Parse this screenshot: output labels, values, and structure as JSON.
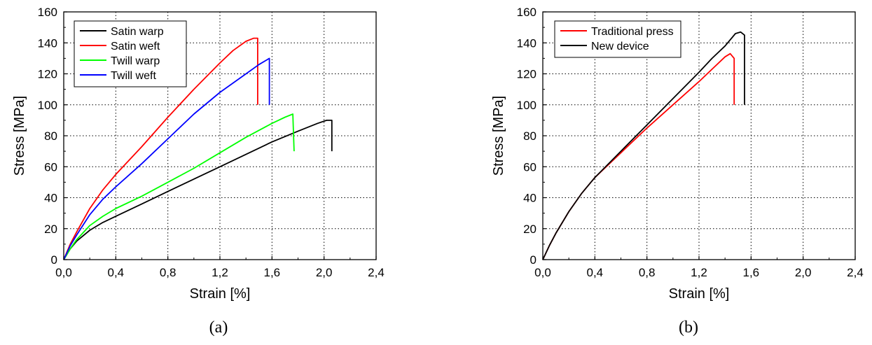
{
  "chart_data": [
    {
      "type": "line",
      "panel_label": "(a)",
      "xlabel": "Strain [%]",
      "ylabel": "Stress [MPa]",
      "xlim": [
        0,
        2.4
      ],
      "ylim": [
        0,
        160
      ],
      "xticks": [
        "0,0",
        "0,4",
        "0,8",
        "1,2",
        "1,6",
        "2,0",
        "2,4"
      ],
      "yticks": [
        "0",
        "20",
        "40",
        "60",
        "80",
        "100",
        "120",
        "140",
        "160"
      ],
      "grid": true,
      "legend_position": "top-left",
      "series": [
        {
          "name": "Satin warp",
          "color": "#000000",
          "points": [
            [
              0,
              0
            ],
            [
              0.05,
              7
            ],
            [
              0.1,
              12
            ],
            [
              0.2,
              19
            ],
            [
              0.3,
              24
            ],
            [
              0.4,
              28
            ],
            [
              0.6,
              36
            ],
            [
              0.8,
              44
            ],
            [
              1.0,
              52
            ],
            [
              1.2,
              60
            ],
            [
              1.4,
              68
            ],
            [
              1.6,
              76
            ],
            [
              1.8,
              83
            ],
            [
              1.95,
              88
            ],
            [
              2.02,
              90
            ],
            [
              2.06,
              90
            ],
            [
              2.06,
              70
            ]
          ]
        },
        {
          "name": "Satin weft",
          "color": "#ff0000",
          "points": [
            [
              0,
              0
            ],
            [
              0.05,
              10
            ],
            [
              0.1,
              18
            ],
            [
              0.2,
              33
            ],
            [
              0.3,
              45
            ],
            [
              0.4,
              55
            ],
            [
              0.6,
              73
            ],
            [
              0.8,
              92
            ],
            [
              1.0,
              110
            ],
            [
              1.2,
              127
            ],
            [
              1.3,
              135
            ],
            [
              1.4,
              141
            ],
            [
              1.46,
              143
            ],
            [
              1.49,
              143
            ],
            [
              1.49,
              100
            ]
          ]
        },
        {
          "name": "Twill warp",
          "color": "#00ff00",
          "points": [
            [
              0,
              0
            ],
            [
              0.05,
              7
            ],
            [
              0.1,
              13
            ],
            [
              0.2,
              22
            ],
            [
              0.3,
              28
            ],
            [
              0.4,
              33
            ],
            [
              0.6,
              41
            ],
            [
              0.8,
              50
            ],
            [
              1.0,
              59
            ],
            [
              1.2,
              69
            ],
            [
              1.4,
              79
            ],
            [
              1.6,
              88
            ],
            [
              1.7,
              92
            ],
            [
              1.76,
              94
            ],
            [
              1.77,
              70
            ]
          ]
        },
        {
          "name": "Twill weft",
          "color": "#0000ff",
          "points": [
            [
              0,
              0
            ],
            [
              0.05,
              9
            ],
            [
              0.1,
              16
            ],
            [
              0.2,
              29
            ],
            [
              0.3,
              39
            ],
            [
              0.4,
              47
            ],
            [
              0.6,
              62
            ],
            [
              0.8,
              78
            ],
            [
              1.0,
              94
            ],
            [
              1.2,
              108
            ],
            [
              1.4,
              120
            ],
            [
              1.5,
              126
            ],
            [
              1.56,
              129
            ],
            [
              1.58,
              130
            ],
            [
              1.58,
              100
            ]
          ]
        }
      ]
    },
    {
      "type": "line",
      "panel_label": "(b)",
      "xlabel": "Strain [%]",
      "ylabel": "Stress [MPa]",
      "xlim": [
        0,
        2.4
      ],
      "ylim": [
        0,
        160
      ],
      "xticks": [
        "0,0",
        "0,4",
        "0,8",
        "1,2",
        "1,6",
        "2,0",
        "2,4"
      ],
      "yticks": [
        "0",
        "20",
        "40",
        "60",
        "80",
        "100",
        "120",
        "140",
        "160"
      ],
      "grid": true,
      "legend_position": "top-left",
      "series": [
        {
          "name": "Traditional press",
          "color": "#ff0000",
          "points": [
            [
              0,
              0
            ],
            [
              0.05,
              9
            ],
            [
              0.1,
              17
            ],
            [
              0.2,
              31
            ],
            [
              0.3,
              43
            ],
            [
              0.4,
              53
            ],
            [
              0.6,
              69
            ],
            [
              0.8,
              85
            ],
            [
              1.0,
              100
            ],
            [
              1.2,
              115
            ],
            [
              1.3,
              123
            ],
            [
              1.4,
              131
            ],
            [
              1.44,
              133
            ],
            [
              1.47,
              130
            ],
            [
              1.47,
              100
            ]
          ]
        },
        {
          "name": "New device",
          "color": "#000000",
          "points": [
            [
              0,
              0
            ],
            [
              0.05,
              9
            ],
            [
              0.1,
              17
            ],
            [
              0.2,
              31
            ],
            [
              0.3,
              43
            ],
            [
              0.4,
              53
            ],
            [
              0.6,
              70
            ],
            [
              0.8,
              87
            ],
            [
              1.0,
              104
            ],
            [
              1.2,
              121
            ],
            [
              1.3,
              130
            ],
            [
              1.4,
              138
            ],
            [
              1.48,
              146
            ],
            [
              1.52,
              147
            ],
            [
              1.55,
              145
            ],
            [
              1.55,
              100
            ]
          ]
        }
      ]
    }
  ]
}
